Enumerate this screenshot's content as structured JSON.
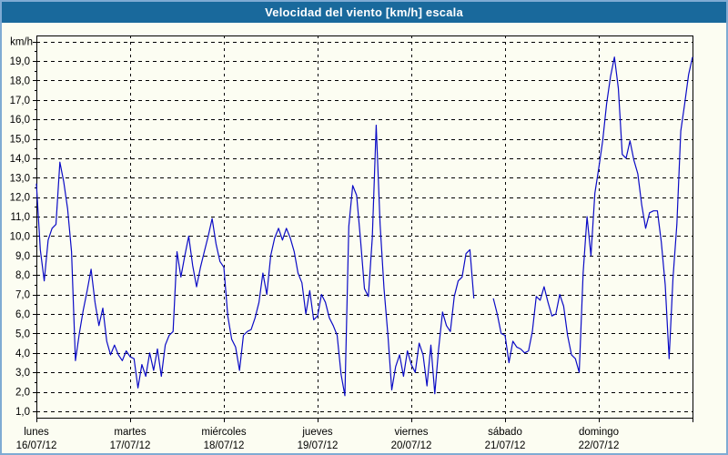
{
  "title_bar": {
    "title": "Velocidad del viento [km/h] escala"
  },
  "chart_data": {
    "type": "line",
    "title": "Velocidad del viento [km/h] escala",
    "ylabel": "km/h",
    "unit_label": "km/h",
    "grid": "dashed-black",
    "legend_position": "none",
    "ylim": [
      0.67,
      20.31
    ],
    "y_tick_step": 1,
    "y_gridline_max": 20,
    "y_tick_labels": [
      "1,0",
      "2,0",
      "3,0",
      "4,0",
      "5,0",
      "6,0",
      "7,0",
      "8,0",
      "9,0",
      "10,0",
      "11,0",
      "12,0",
      "13,0",
      "14,0",
      "15,0",
      "16,0",
      "17,0",
      "18,0",
      "19,0"
    ],
    "x_days": [
      {
        "name": "lunes",
        "date": "16/07/12"
      },
      {
        "name": "martes",
        "date": "17/07/12"
      },
      {
        "name": "miércoles",
        "date": "18/07/12"
      },
      {
        "name": "jueves",
        "date": "19/07/12"
      },
      {
        "name": "viernes",
        "date": "20/07/12"
      },
      {
        "name": "sábado",
        "date": "21/07/12"
      },
      {
        "name": "domingo",
        "date": "22/07/12"
      }
    ],
    "points_per_day": 24,
    "series": [
      {
        "name": "Velocidad del viento [km/h]",
        "color": "#0b0bc6",
        "values": [
          12.7,
          9.3,
          7.7,
          9.8,
          10.4,
          10.6,
          13.8,
          12.8,
          11.4,
          9.2,
          3.6,
          5.0,
          6.2,
          7.2,
          8.3,
          6.6,
          5.4,
          6.3,
          4.6,
          3.9,
          4.4,
          3.9,
          3.6,
          4.1,
          3.8,
          3.7,
          2.2,
          3.4,
          2.8,
          4.0,
          3.1,
          4.2,
          2.8,
          4.4,
          4.9,
          5.1,
          9.2,
          7.9,
          9.0,
          10.0,
          8.5,
          7.4,
          8.4,
          9.2,
          10.0,
          10.9,
          9.6,
          8.7,
          8.4,
          5.9,
          4.7,
          4.3,
          3.1,
          4.9,
          5.1,
          5.2,
          5.8,
          6.6,
          8.1,
          7.0,
          9.0,
          9.9,
          10.4,
          9.8,
          10.4,
          9.9,
          9.2,
          8.1,
          7.6,
          6.0,
          7.2,
          5.7,
          5.9,
          7.0,
          6.6,
          5.8,
          5.4,
          4.9,
          2.9,
          1.8,
          10.5,
          12.6,
          12.1,
          9.8,
          7.3,
          6.9,
          9.9,
          15.7,
          10.6,
          7.3,
          4.9,
          2.1,
          3.3,
          3.9,
          2.8,
          4.1,
          3.4,
          3.0,
          4.5,
          3.9,
          2.3,
          4.4,
          1.9,
          4.2,
          6.1,
          5.4,
          5.1,
          6.9,
          7.7,
          7.9,
          9.1,
          9.3,
          6.8,
          null,
          null,
          null,
          null,
          6.8,
          6.0,
          5.0,
          4.9,
          3.5,
          4.6,
          4.3,
          4.2,
          4.0,
          4.1,
          5.1,
          6.9,
          6.7,
          7.4,
          6.6,
          5.9,
          6.0,
          7.0,
          6.4,
          4.9,
          3.9,
          3.7,
          3.0,
          8.1,
          11.0,
          9.0,
          12.2,
          13.5,
          14.9,
          16.8,
          18.2,
          19.2,
          17.6,
          14.2,
          14.0,
          14.9,
          13.9,
          13.2,
          11.6,
          10.4,
          11.2,
          11.3,
          11.3,
          9.7,
          7.5,
          3.7,
          7.8,
          10.6,
          15.4,
          16.8,
          18.3,
          19.2
        ]
      }
    ]
  },
  "colors": {
    "line": "#0b0bc6",
    "titlebar_bg": "#19699c",
    "titlebar_text": "#ffffff",
    "window_bg": "#fcfdf2",
    "frame_border": "#7fabd3",
    "grid": "#000000",
    "axis": "#000000"
  }
}
